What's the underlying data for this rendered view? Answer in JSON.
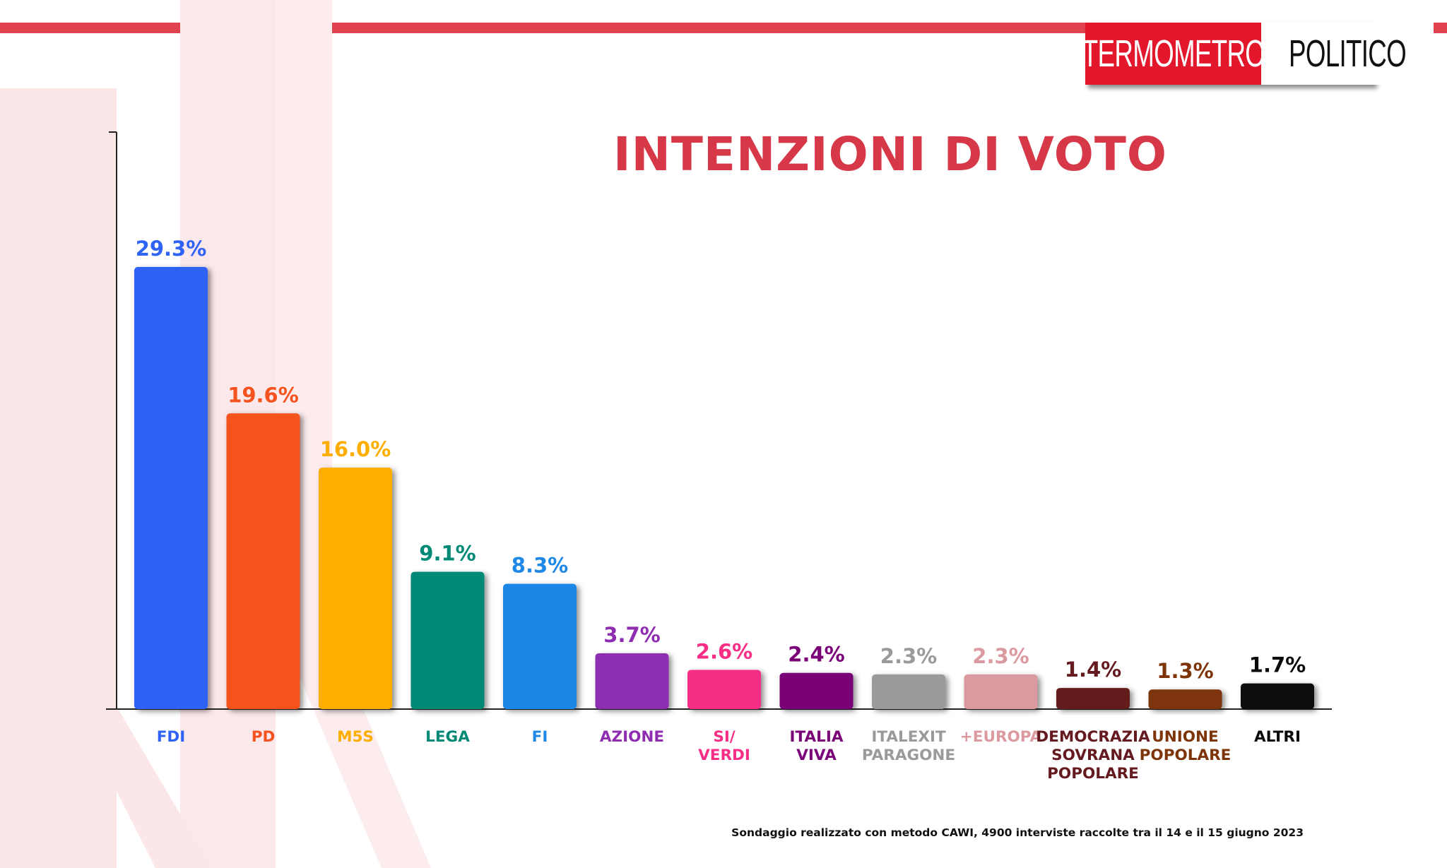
{
  "logo": {
    "part1": "TERMOMETRO",
    "part2": "POLITICO"
  },
  "footnote": "Sondaggio realizzato con metodo CAWI, 4900 interviste raccolte tra il 14 e il 15 giugno 2023",
  "chart_data": {
    "type": "bar",
    "title": "INTENZIONI DI VOTO",
    "xlabel": "",
    "ylabel": "",
    "ylim": [
      0,
      32
    ],
    "grid": false,
    "legend": "none",
    "categories": [
      "FDI",
      "PD",
      "M5S",
      "LEGA",
      "FI",
      "AZIONE",
      "SI/ VERDI",
      "ITALIA VIVA",
      "ITALEXIT PARAGONE",
      "+EUROPA",
      "DEMOCRAZIA SOVRANA POPOLARE",
      "UNIONE POPOLARE",
      "ALTRI"
    ],
    "category_lines": [
      [
        "FDI"
      ],
      [
        "PD"
      ],
      [
        "M5S"
      ],
      [
        "LEGA"
      ],
      [
        "FI"
      ],
      [
        "AZIONE"
      ],
      [
        "SI/",
        "VERDI"
      ],
      [
        "ITALIA",
        "VIVA"
      ],
      [
        "ITALEXIT",
        "PARAGONE"
      ],
      [
        "+EUROPA"
      ],
      [
        "DEMOCRAZIA",
        "SOVRANA",
        "POPOLARE"
      ],
      [
        "UNIONE",
        "POPOLARE"
      ],
      [
        "ALTRI"
      ]
    ],
    "values": [
      29.3,
      19.6,
      16.0,
      9.1,
      8.3,
      3.7,
      2.6,
      2.4,
      2.3,
      2.3,
      1.4,
      1.3,
      1.7
    ],
    "value_labels": [
      "29.3%",
      "19.6%",
      "16.0%",
      "9.1%",
      "8.3%",
      "3.7%",
      "2.6%",
      "2.4%",
      "2.3%",
      "2.3%",
      "1.4%",
      "1.3%",
      "1.7%"
    ],
    "colors": [
      "#2f62f6",
      "#f4521f",
      "#fdae00",
      "#008a76",
      "#1f87e6",
      "#8e2db0",
      "#f72d86",
      "#7a0077",
      "#9a9a9a",
      "#db9aa0",
      "#641a1e",
      "#7e3409",
      "#0a0a0a"
    ]
  }
}
